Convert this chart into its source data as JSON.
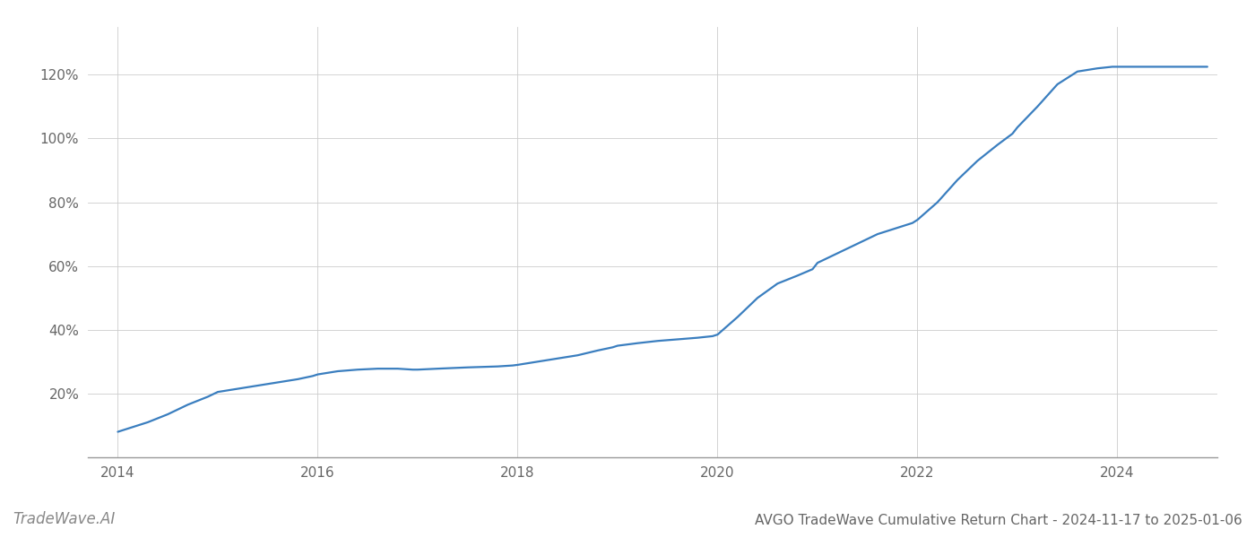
{
  "title": "AVGO TradeWave Cumulative Return Chart - 2024-11-17 to 2025-01-06",
  "watermark": "TradeWave.AI",
  "line_color": "#3a7ebf",
  "background_color": "#ffffff",
  "grid_color": "#cccccc",
  "x_values": [
    2014.0,
    2014.15,
    2014.3,
    2014.5,
    2014.7,
    2014.9,
    2015.0,
    2015.2,
    2015.4,
    2015.6,
    2015.8,
    2015.95,
    2016.0,
    2016.2,
    2016.4,
    2016.6,
    2016.8,
    2016.95,
    2017.0,
    2017.2,
    2017.5,
    2017.8,
    2017.95,
    2018.0,
    2018.2,
    2018.4,
    2018.6,
    2018.8,
    2018.95,
    2019.0,
    2019.2,
    2019.4,
    2019.6,
    2019.8,
    2019.95,
    2020.0,
    2020.2,
    2020.4,
    2020.6,
    2020.8,
    2020.95,
    2021.0,
    2021.2,
    2021.4,
    2021.6,
    2021.8,
    2021.95,
    2022.0,
    2022.2,
    2022.4,
    2022.6,
    2022.8,
    2022.95,
    2023.0,
    2023.2,
    2023.4,
    2023.6,
    2023.8,
    2023.95,
    2024.0,
    2024.3,
    2024.6,
    2024.9
  ],
  "y_values": [
    8.0,
    9.5,
    11.0,
    13.5,
    16.5,
    19.0,
    20.5,
    21.5,
    22.5,
    23.5,
    24.5,
    25.5,
    26.0,
    27.0,
    27.5,
    27.8,
    27.8,
    27.5,
    27.5,
    27.8,
    28.2,
    28.5,
    28.8,
    29.0,
    30.0,
    31.0,
    32.0,
    33.5,
    34.5,
    35.0,
    35.8,
    36.5,
    37.0,
    37.5,
    38.0,
    38.5,
    44.0,
    50.0,
    54.5,
    57.0,
    59.0,
    61.0,
    64.0,
    67.0,
    70.0,
    72.0,
    73.5,
    74.5,
    80.0,
    87.0,
    93.0,
    98.0,
    101.5,
    103.5,
    110.0,
    117.0,
    121.0,
    122.0,
    122.5,
    122.5,
    122.5,
    122.5,
    122.5
  ],
  "xlim": [
    2013.7,
    2025.0
  ],
  "ylim": [
    0,
    135
  ],
  "xtick_labels": [
    "2014",
    "2016",
    "2018",
    "2020",
    "2022",
    "2024"
  ],
  "xtick_positions": [
    2014,
    2016,
    2018,
    2020,
    2022,
    2024
  ],
  "ytick_values": [
    20,
    40,
    60,
    80,
    100,
    120
  ],
  "line_width": 1.6,
  "title_fontsize": 11,
  "tick_fontsize": 11,
  "watermark_fontsize": 12,
  "axis_label_color": "#666666",
  "spine_color": "#999999"
}
